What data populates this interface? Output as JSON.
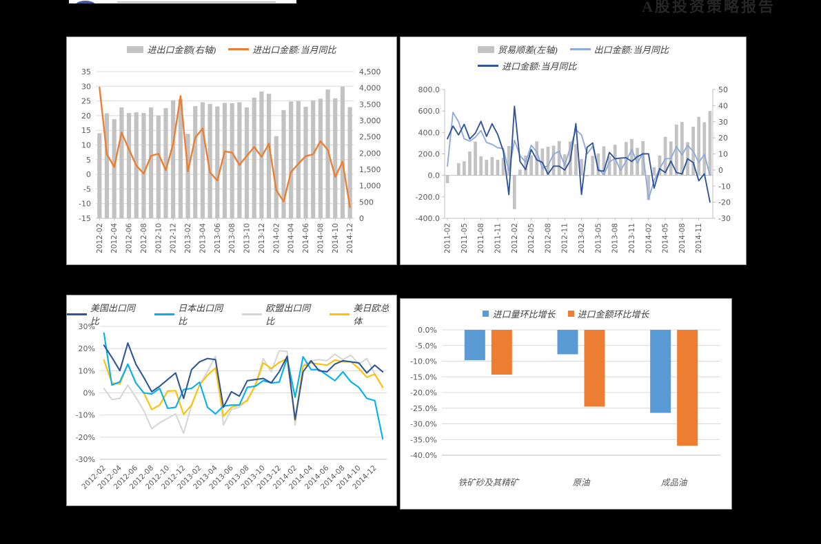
{
  "header": {
    "title": "A股投资策略报告"
  },
  "colors": {
    "page_background": "#000000",
    "chart_background": "#ffffff",
    "grid": "#d9d9d9",
    "axis_line": "#bfbfbf",
    "axis_text": "#595959",
    "bar_gray": "#c2c2c2",
    "orange": "#ed7d31",
    "light_blue": "#8faadc",
    "dark_blue": "#2f5597",
    "cyan": "#00b0f0",
    "eu_gray": "#d6d6d6",
    "yellow": "#ffc000",
    "blue": "#5b9bd5"
  },
  "chart_data": [
    {
      "type": "combo-bar-line",
      "title": "",
      "label_every": 2,
      "categories": [
        "2012-02",
        "2012-03",
        "2012-04",
        "2012-05",
        "2012-06",
        "2012-07",
        "2012-08",
        "2012-09",
        "2012-10",
        "2012-11",
        "2012-12",
        "2013-01",
        "2013-02",
        "2013-03",
        "2013-04",
        "2013-05",
        "2013-06",
        "2013-07",
        "2013-08",
        "2013-09",
        "2013-10",
        "2013-11",
        "2013-12",
        "2014-01",
        "2014-02",
        "2014-03",
        "2014-04",
        "2014-05",
        "2014-06",
        "2014-07",
        "2014-08",
        "2014-09",
        "2014-10",
        "2014-11",
        "2014-12"
      ],
      "axes": {
        "left": {
          "min": -15,
          "max": 35,
          "step": 5,
          "format": "int"
        },
        "right": {
          "min": 0,
          "max": 4500,
          "step": 500,
          "format": "comma"
        }
      },
      "series": [
        {
          "name": "进出口金额(右轴)",
          "type": "bar",
          "axis": "right",
          "marker": "bar",
          "color": "#c2c2c2",
          "values": [
            2610,
            3220,
            3040,
            3400,
            3230,
            3250,
            3230,
            3400,
            3150,
            3380,
            3620,
            3660,
            2590,
            3440,
            3560,
            3510,
            3430,
            3540,
            3530,
            3560,
            3400,
            3700,
            3890,
            3820,
            2520,
            3320,
            3580,
            3600,
            3420,
            3620,
            3670,
            3950,
            3680,
            4040,
            3410
          ]
        },
        {
          "name": "进出口金额:当月同比",
          "type": "line",
          "axis": "left",
          "marker": "line",
          "color": "#ed7d31",
          "values": [
            29.6,
            6.8,
            2.5,
            14.2,
            8.5,
            3.0,
            0.2,
            6.3,
            7.0,
            1.4,
            10.3,
            26.7,
            1.0,
            12.5,
            15.6,
            0.6,
            -2.1,
            7.8,
            7.4,
            3.2,
            6.3,
            9.3,
            6.0,
            10.4,
            -5.4,
            -9.3,
            0.8,
            3.6,
            6.2,
            6.8,
            11.3,
            8.3,
            -0.9,
            4.3,
            -11.2
          ]
        }
      ]
    },
    {
      "type": "combo-bar-line",
      "title": "",
      "label_every": 3,
      "categories": [
        "2011-02",
        "2011-03",
        "2011-04",
        "2011-05",
        "2011-06",
        "2011-07",
        "2011-08",
        "2011-09",
        "2011-10",
        "2011-11",
        "2011-12",
        "2012-01",
        "2012-02",
        "2012-03",
        "2012-04",
        "2012-05",
        "2012-06",
        "2012-07",
        "2012-08",
        "2012-09",
        "2012-10",
        "2012-11",
        "2012-12",
        "2013-01",
        "2013-02",
        "2013-03",
        "2013-04",
        "2013-05",
        "2013-06",
        "2013-07",
        "2013-08",
        "2013-09",
        "2013-10",
        "2013-11",
        "2013-12",
        "2014-01",
        "2014-02",
        "2014-03",
        "2014-04",
        "2014-05",
        "2014-06",
        "2014-07",
        "2014-08",
        "2014-09",
        "2014-10",
        "2014-11",
        "2014-12",
        "2015-01"
      ],
      "axes": {
        "left": {
          "min": -400,
          "max": 800,
          "step": 200,
          "format": "1dp"
        },
        "right": {
          "min": -30,
          "max": 50,
          "step": 10,
          "format": "int"
        }
      },
      "series": [
        {
          "name": "贸易顺差(左轴)",
          "type": "bar",
          "axis": "left",
          "marker": "bar",
          "color": "#c2c2c2",
          "values": [
            -73,
            1,
            114,
            131,
            223,
            315,
            178,
            145,
            170,
            145,
            165,
            273,
            -315,
            53,
            184,
            187,
            317,
            251,
            267,
            277,
            320,
            196,
            316,
            291,
            153,
            -9,
            182,
            204,
            271,
            178,
            285,
            152,
            311,
            338,
            256,
            319,
            -230,
            77,
            185,
            359,
            316,
            473,
            498,
            310,
            454,
            545,
            496,
            600
          ]
        },
        {
          "name": "出口金额:当月同比",
          "type": "line",
          "axis": "right",
          "marker": "line",
          "color": "#8faadc",
          "values": [
            2.4,
            35.8,
            29.9,
            19.4,
            17.9,
            20.4,
            24.5,
            17.1,
            15.9,
            13.8,
            13.4,
            -0.5,
            18.4,
            8.9,
            4.9,
            15.3,
            11.3,
            1.0,
            2.7,
            9.9,
            11.6,
            2.9,
            14.1,
            25.0,
            21.8,
            10.0,
            14.7,
            1.0,
            -3.1,
            5.1,
            7.2,
            -0.3,
            5.6,
            12.7,
            4.3,
            10.6,
            -18.1,
            -6.6,
            0.9,
            7.0,
            7.2,
            14.5,
            9.4,
            15.3,
            11.6,
            4.7,
            9.7,
            -3.3
          ]
        },
        {
          "name": "进口金额:当月同比",
          "type": "line",
          "axis": "right",
          "marker": "line",
          "color": "#2f5597",
          "values": [
            19.4,
            27.3,
            21.8,
            28.4,
            19.3,
            22.9,
            30.2,
            20.9,
            28.7,
            22.1,
            11.8,
            -15.3,
            39.6,
            5.3,
            0.3,
            12.7,
            6.3,
            4.7,
            -2.6,
            2.4,
            2.4,
            0.0,
            6.0,
            28.8,
            -15.2,
            14.1,
            16.8,
            -0.3,
            -0.7,
            10.9,
            7.0,
            7.4,
            7.6,
            5.3,
            8.3,
            10.0,
            10.1,
            -11.3,
            0.8,
            -1.6,
            5.5,
            -1.6,
            -2.4,
            7.0,
            4.6,
            -6.7,
            -2.4,
            -19.9
          ]
        }
      ]
    },
    {
      "type": "line",
      "title": "",
      "label_every": 2,
      "categories": [
        "2012-02",
        "2012-03",
        "2012-04",
        "2012-05",
        "2012-06",
        "2012-07",
        "2012-08",
        "2012-09",
        "2012-10",
        "2012-11",
        "2012-12",
        "2013-01",
        "2013-02",
        "2013-03",
        "2013-04",
        "2013-05",
        "2013-06",
        "2013-07",
        "2013-08",
        "2013-09",
        "2013-10",
        "2013-11",
        "2013-12",
        "2014-01",
        "2014-02",
        "2014-03",
        "2014-04",
        "2014-05",
        "2014-06",
        "2014-07",
        "2014-08",
        "2014-09",
        "2014-10",
        "2014-11",
        "2014-12",
        "2015-01"
      ],
      "axes": {
        "left": {
          "min": -30,
          "max": 30,
          "step": 10,
          "format": "pct"
        }
      },
      "series": [
        {
          "name": "美国出口同比",
          "type": "line",
          "axis": "left",
          "marker": "line",
          "color": "#2f5597",
          "values": [
            21.5,
            16,
            10,
            22.5,
            13,
            7,
            0.5,
            3,
            6,
            9,
            -2.5,
            10.5,
            14,
            15.5,
            15,
            -6.5,
            0.5,
            -1.5,
            5.5,
            6,
            6.5,
            4.5,
            9.5,
            16.5,
            -12,
            9.5,
            14.5,
            10,
            9.5,
            13,
            14.5,
            14,
            13.5,
            9,
            12.5,
            9.5
          ]
        },
        {
          "name": "日本出口同比",
          "type": "line",
          "axis": "left",
          "marker": "line",
          "color": "#00b0f0",
          "values": [
            27,
            3.5,
            5,
            13,
            4.5,
            0,
            -0.5,
            2,
            -7,
            -6.5,
            1.5,
            2,
            4.8,
            -6.5,
            -9.5,
            -6,
            -5.5,
            -5.5,
            2.5,
            3,
            5.5,
            4.5,
            4.8,
            15.7,
            -2,
            16.3,
            10.5,
            10.5,
            8,
            5.5,
            9.5,
            5,
            2.5,
            -2.5,
            -3.5,
            -20.8
          ]
        },
        {
          "name": "欧盟出口同比",
          "type": "line",
          "axis": "left",
          "marker": "line",
          "color": "#d6d6d6",
          "values": [
            2,
            -3,
            -2.5,
            3.5,
            -2,
            -8,
            -16.2,
            -13.5,
            -11.5,
            -9.5,
            -18.2,
            -5.5,
            3.5,
            9.7,
            16.5,
            -14.5,
            -7.5,
            -6.5,
            -3,
            3,
            15.5,
            9.5,
            19,
            18.7,
            -14.5,
            12.5,
            14.5,
            15,
            14.5,
            17.5,
            15,
            17,
            13,
            15.5,
            8.5,
            2.5
          ]
        },
        {
          "name": "美日欧总体",
          "type": "line",
          "axis": "left",
          "marker": "line",
          "color": "#ffc000",
          "values": [
            14.8,
            4.5,
            4,
            12.8,
            4.5,
            0,
            -7.5,
            -5.5,
            0.8,
            1,
            -9.7,
            -5.5,
            3.5,
            8,
            11.2,
            -10.5,
            -6.5,
            -5.5,
            -3.5,
            3.5,
            13.5,
            11,
            13.7,
            15.5,
            -12.5,
            12,
            13.5,
            13,
            12.5,
            14.8,
            14,
            14,
            11,
            7,
            8.5,
            2.5
          ]
        }
      ]
    },
    {
      "type": "grouped-bar",
      "title": "",
      "label_every": 1,
      "categories": [
        "铁矿砂及其精矿",
        "原油",
        "成品油"
      ],
      "axes": {
        "left": {
          "min": -40,
          "max": 0,
          "step": 5,
          "format": "pct1"
        }
      },
      "series": [
        {
          "name": "进口量环比增长",
          "type": "bar",
          "axis": "left",
          "marker": "sq",
          "color": "#5b9bd5",
          "values": [
            -9.7,
            -7.8,
            -26.5
          ]
        },
        {
          "name": "进口金额环比增长",
          "type": "bar",
          "axis": "left",
          "marker": "sq",
          "color": "#ed7d31",
          "values": [
            -14.3,
            -24.5,
            -37.0
          ]
        }
      ]
    }
  ]
}
